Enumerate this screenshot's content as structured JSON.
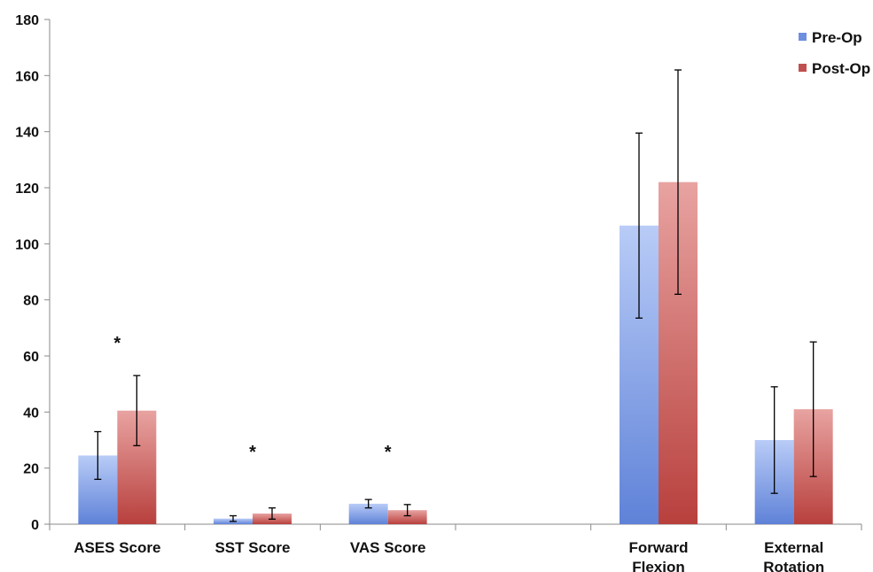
{
  "chart_data": {
    "type": "bar",
    "title": "",
    "xlabel": "",
    "ylabel": "",
    "ylim": [
      0,
      180
    ],
    "yticks": [
      "0",
      "20",
      "40",
      "60",
      "80",
      "100",
      "120",
      "140",
      "160",
      "180"
    ],
    "grid": false,
    "legend_position": "top-right",
    "categories": [
      "ASES Score",
      "SST Score",
      "VAS Score",
      "",
      "Forward Flexion",
      "External Rotation"
    ],
    "series": [
      {
        "name": "Pre-Op",
        "color": "#6d8fe0",
        "values": [
          24.5,
          2,
          7.3,
          null,
          106.5,
          30
        ],
        "error": [
          8.5,
          1,
          1.5,
          null,
          33,
          19
        ]
      },
      {
        "name": "Post-Op",
        "color": "#c0504d",
        "values": [
          40.5,
          3.8,
          5,
          null,
          122,
          41
        ],
        "error": [
          12.5,
          2,
          2,
          null,
          40,
          24
        ]
      }
    ],
    "significance": [
      {
        "category": "ASES Score",
        "label": "*"
      },
      {
        "category": "SST Score",
        "label": "*"
      },
      {
        "category": "VAS Score",
        "label": "*"
      }
    ]
  }
}
